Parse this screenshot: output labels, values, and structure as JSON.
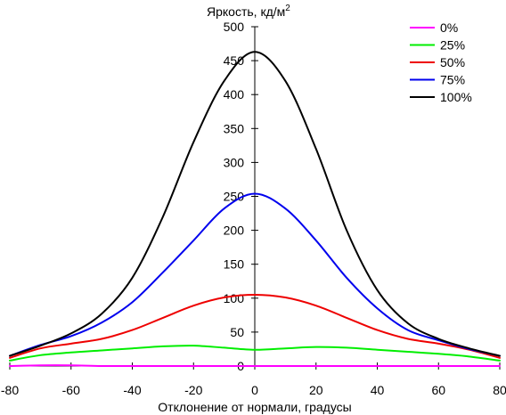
{
  "chart_data": {
    "type": "line",
    "title": "",
    "ylabel": "Яркость, кд/м",
    "ylabel_sup": "2",
    "xlabel": "Отклонение от нормали, градусы",
    "xlim": [
      -80,
      80
    ],
    "ylim": [
      0,
      500
    ],
    "x_ticks": [
      -80,
      -60,
      -40,
      -20,
      0,
      20,
      40,
      60,
      80
    ],
    "y_ticks": [
      0,
      50,
      100,
      150,
      200,
      250,
      300,
      350,
      400,
      450,
      500
    ],
    "grid": false,
    "legend_position": "top-right",
    "x": [
      -80,
      -70,
      -60,
      -50,
      -40,
      -30,
      -20,
      -10,
      0,
      10,
      20,
      30,
      40,
      50,
      60,
      70,
      80
    ],
    "series": [
      {
        "name": "0%",
        "color": "#ff00ff",
        "values": [
          0,
          1,
          1,
          0,
          0,
          0,
          0,
          0,
          0,
          0,
          0,
          0,
          0,
          0,
          0,
          0,
          0
        ]
      },
      {
        "name": "25%",
        "color": "#00ee00",
        "values": [
          8,
          16,
          20,
          23,
          26,
          29,
          30,
          27,
          24,
          26,
          28,
          27,
          24,
          21,
          18,
          14,
          8
        ]
      },
      {
        "name": "50%",
        "color": "#ee0000",
        "values": [
          12,
          26,
          33,
          40,
          53,
          71,
          89,
          101,
          105,
          101,
          89,
          71,
          53,
          40,
          33,
          24,
          12
        ]
      },
      {
        "name": "75%",
        "color": "#0000ee",
        "values": [
          15,
          31,
          44,
          64,
          94,
          138,
          185,
          232,
          254,
          232,
          185,
          130,
          85,
          53,
          38,
          25,
          15
        ]
      },
      {
        "name": "100%",
        "color": "#000000",
        "values": [
          15,
          30,
          48,
          77,
          130,
          220,
          330,
          420,
          463,
          420,
          320,
          200,
          112,
          63,
          40,
          26,
          15
        ]
      }
    ]
  }
}
